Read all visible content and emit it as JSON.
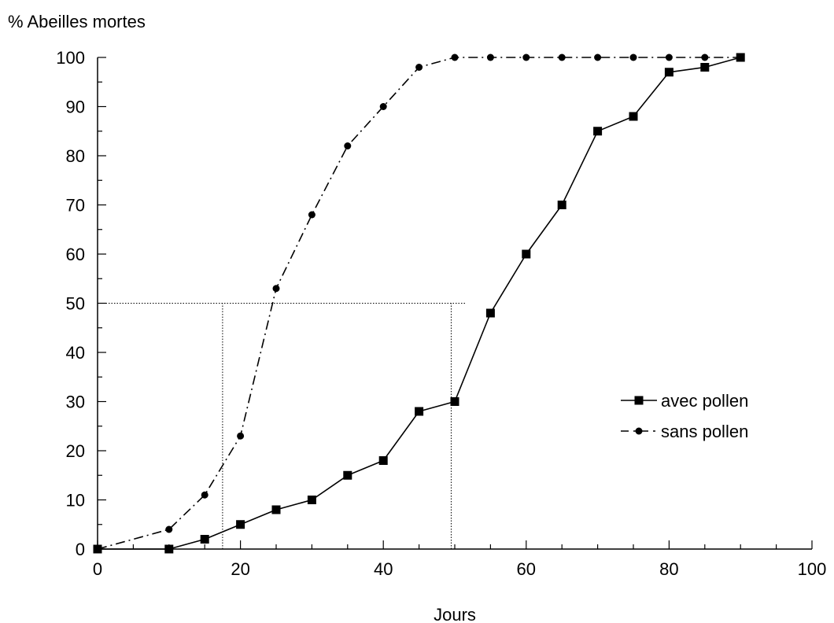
{
  "chart_data": {
    "type": "line",
    "title": "",
    "ylabel": "% Abeilles mortes",
    "xlabel": "Jours",
    "xlim": [
      0,
      100
    ],
    "ylim": [
      0,
      100
    ],
    "x_ticks": [
      0,
      20,
      40,
      60,
      80,
      100
    ],
    "x_tick_labels": [
      "0",
      "20",
      "40",
      "60",
      "80",
      "100"
    ],
    "y_ticks": [
      0,
      10,
      20,
      30,
      40,
      50,
      60,
      70,
      80,
      90,
      100
    ],
    "y_tick_labels": [
      "0",
      "10",
      "20",
      "30",
      "40",
      "50",
      "60",
      "70",
      "80",
      "90",
      "100"
    ],
    "grid": false,
    "legend_position": "right",
    "series": [
      {
        "name": "avec pollen",
        "marker": "square",
        "line_style": "solid",
        "x": [
          0,
          10,
          15,
          20,
          25,
          30,
          35,
          40,
          45,
          50,
          55,
          60,
          65,
          70,
          75,
          80,
          85,
          90
        ],
        "y": [
          0,
          0,
          2,
          5,
          8,
          10,
          15,
          18,
          28,
          30,
          48,
          60,
          70,
          85,
          88,
          97,
          98,
          100
        ]
      },
      {
        "name": "sans pollen",
        "marker": "circle",
        "line_style": "dash-dot",
        "x": [
          0,
          10,
          15,
          20,
          25,
          30,
          35,
          40,
          45,
          50,
          55,
          60,
          65,
          70,
          75,
          80,
          85,
          90
        ],
        "y": [
          0,
          4,
          11,
          23,
          53,
          68,
          82,
          90,
          98,
          100,
          100,
          100,
          100,
          100,
          100,
          100,
          100,
          100
        ]
      }
    ],
    "reference_lines": [
      {
        "axis": "y",
        "value": 50,
        "x_range": [
          0,
          51.5
        ]
      },
      {
        "axis": "x",
        "value": 17.5,
        "y_range": [
          0,
          50
        ]
      },
      {
        "axis": "x",
        "value": 49.5,
        "y_range": [
          0,
          50
        ]
      }
    ]
  }
}
